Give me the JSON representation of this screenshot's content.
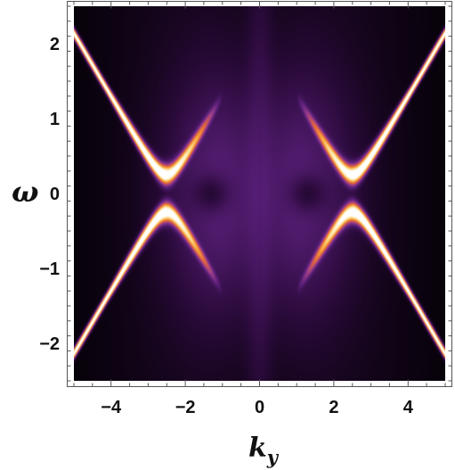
{
  "chart_data": {
    "type": "heatmap",
    "title": "",
    "xlabel": "k",
    "xlabel_subscript": "y",
    "ylabel": "ω",
    "xlim": [
      -5,
      5
    ],
    "ylim": [
      -2.5,
      2.5
    ],
    "x_ticks": [
      {
        "value": -4,
        "label": "−4"
      },
      {
        "value": -2,
        "label": "−2"
      },
      {
        "value": 0,
        "label": "0"
      },
      {
        "value": 2,
        "label": "2"
      },
      {
        "value": 4,
        "label": "4"
      }
    ],
    "y_ticks": [
      {
        "value": 2,
        "label": "2"
      },
      {
        "value": 1,
        "label": "1"
      },
      {
        "value": 0,
        "label": "0"
      },
      {
        "value": -1,
        "label": "−1"
      },
      {
        "value": -2,
        "label": "−2"
      }
    ],
    "colormap": [
      "#000000",
      "#2a0a3a",
      "#5a1f7a",
      "#9b3d8a",
      "#e0643c",
      "#f7a53a",
      "#fde3a0",
      "#ffffff"
    ],
    "bands": {
      "dirac_points_ky": [
        -2.5,
        2.5
      ],
      "gap_half_width": 0.25,
      "slope": 0.85,
      "inner_arc_end_ky": 1.0
    },
    "grid": false,
    "legend": "none"
  }
}
